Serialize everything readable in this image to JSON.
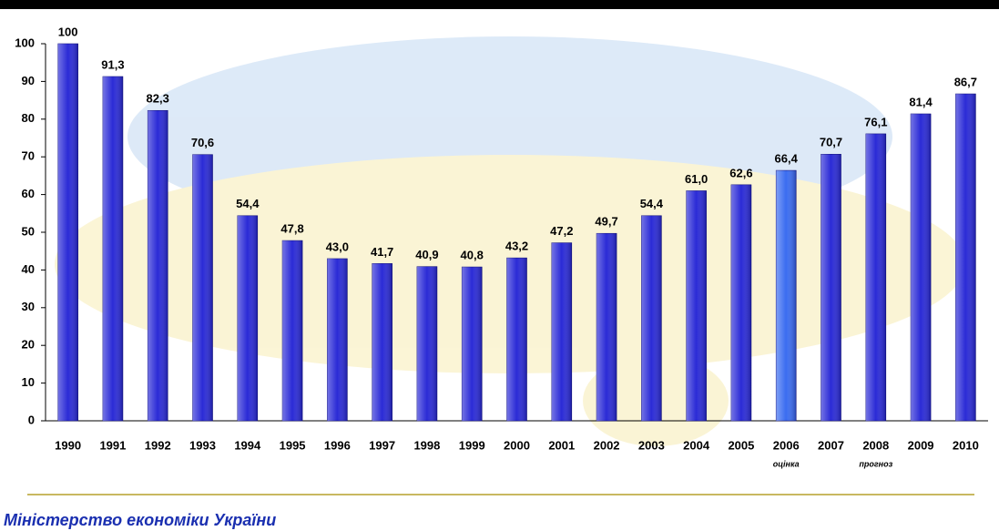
{
  "chart_data": {
    "type": "bar",
    "categories": [
      "1990",
      "1991",
      "1992",
      "1993",
      "1994",
      "1995",
      "1996",
      "1997",
      "1998",
      "1999",
      "2000",
      "2001",
      "2002",
      "2003",
      "2004",
      "2005",
      "2006",
      "2007",
      "2008",
      "2009",
      "2010"
    ],
    "values": [
      100,
      91.3,
      82.3,
      70.6,
      54.4,
      47.8,
      43.0,
      41.7,
      40.9,
      40.8,
      43.2,
      47.2,
      49.7,
      54.4,
      61.0,
      62.6,
      66.4,
      70.7,
      76.1,
      81.4,
      86.7
    ],
    "value_labels": [
      "100",
      "91,3",
      "82,3",
      "70,6",
      "54,4",
      "47,8",
      "43,0",
      "41,7",
      "40,9",
      "40,8",
      "43,2",
      "47,2",
      "49,7",
      "54,4",
      "61,0",
      "62,6",
      "66,4",
      "70,7",
      "76,1",
      "81,4",
      "86,7"
    ],
    "colors": [
      "#2a2ad6",
      "#2a2ad6",
      "#2a2ad6",
      "#2a2ad6",
      "#2a2ad6",
      "#2a2ad6",
      "#2a2ad6",
      "#2a2ad6",
      "#2a2ad6",
      "#2a2ad6",
      "#2a2ad6",
      "#2a2ad6",
      "#2a2ad6",
      "#2a2ad6",
      "#2a2ad6",
      "#2a2ad6",
      "#3a6cf0",
      "#2a2ad6",
      "#2a2ad6",
      "#2a2ad6",
      "#2a2ad6"
    ],
    "ylim": [
      0,
      100
    ],
    "yticks": [
      0,
      10,
      20,
      30,
      40,
      50,
      60,
      70,
      80,
      90,
      100
    ],
    "grid": false,
    "annotations": [
      {
        "category": 16,
        "text": "оцінка"
      },
      {
        "category": 18,
        "text": "прогноз"
      }
    ],
    "footer": "Міністерство економіки України"
  }
}
